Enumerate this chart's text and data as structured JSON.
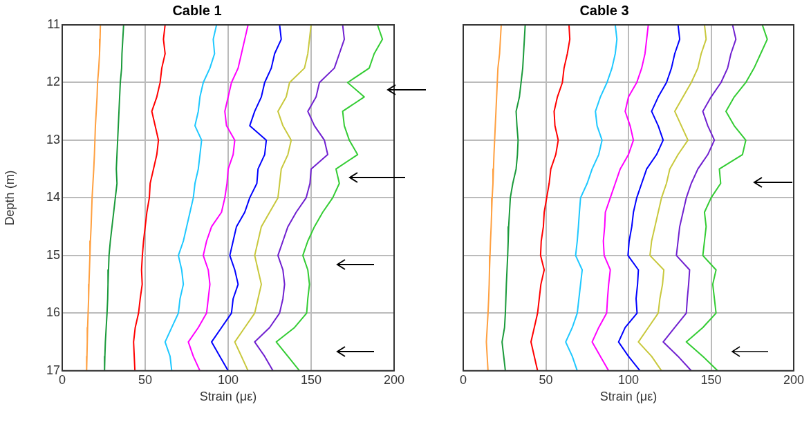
{
  "chart_data": [
    {
      "type": "line",
      "title": "Cable 1",
      "xlabel": "Strain (με)",
      "ylabel": "Depth (m)",
      "xlim": [
        0,
        200
      ],
      "xticks": [
        0,
        50,
        100,
        150,
        200
      ],
      "ylim": [
        17,
        11
      ],
      "yticks": [
        11,
        12,
        13,
        14,
        15,
        16,
        17
      ],
      "grid": true,
      "legend": false,
      "marker": "none",
      "line_style": "solid",
      "series": [
        {
          "color": "#ffa040",
          "x": [
            23,
            22.8,
            22.5,
            22,
            21.3,
            21,
            20.5,
            20,
            19.7,
            19.4,
            19,
            18.5,
            18,
            17.7,
            17.4,
            17,
            16.7,
            16.4,
            16.1,
            15.9,
            15.6,
            15.3,
            15.1,
            14.9,
            14.7
          ],
          "values": [
            11,
            11.25,
            11.5,
            11.75,
            12,
            12.25,
            12.5,
            12.75,
            13,
            13.25,
            13.5,
            13.75,
            14,
            14.25,
            14.5,
            14.75,
            15,
            15.25,
            15.5,
            15.75,
            16,
            16.25,
            16.5,
            16.75,
            17
          ]
        },
        {
          "color": "#1a9a3a",
          "x": [
            37,
            36.5,
            36,
            35.8,
            35,
            34.6,
            34.2,
            33.8,
            33.4,
            33,
            32.6,
            33,
            32,
            31,
            30,
            29,
            28.2,
            27.9,
            27.6,
            27.4,
            27,
            26.5,
            26,
            25.7,
            25.5
          ],
          "values": [
            11,
            11.25,
            11.5,
            11.75,
            12,
            12.25,
            12.5,
            12.75,
            13,
            13.25,
            13.5,
            13.75,
            14,
            14.25,
            14.5,
            14.75,
            15,
            15.25,
            15.5,
            15.75,
            16,
            16.25,
            16.5,
            16.75,
            17
          ]
        },
        {
          "color": "#ff0000",
          "x": [
            62,
            61,
            62,
            60,
            59,
            57,
            54,
            56,
            58,
            57,
            55,
            53,
            52.5,
            51,
            50,
            49,
            48.3,
            47.8,
            48.2,
            47,
            46,
            44,
            43,
            43.4,
            43.8
          ],
          "values": [
            11,
            11.25,
            11.5,
            11.75,
            12,
            12.25,
            12.5,
            12.75,
            13,
            13.25,
            13.5,
            13.75,
            14,
            14.25,
            14.5,
            14.75,
            15,
            15.25,
            15.5,
            15.75,
            16,
            16.25,
            16.5,
            16.75,
            17
          ]
        },
        {
          "color": "#1ec8ff",
          "x": [
            93,
            91,
            91.8,
            89,
            85,
            83,
            82,
            80,
            84,
            83,
            82,
            80,
            79,
            77,
            75,
            73,
            70,
            72,
            73,
            71,
            70,
            66,
            62,
            65,
            66
          ],
          "values": [
            11,
            11.25,
            11.5,
            11.75,
            12,
            12.25,
            12.5,
            12.75,
            13,
            13.25,
            13.5,
            13.75,
            14,
            14.25,
            14.5,
            14.75,
            15,
            15.25,
            15.5,
            15.75,
            16,
            16.25,
            16.5,
            16.75,
            17
          ]
        },
        {
          "color": "#ff00ff",
          "x": [
            112,
            110,
            108,
            106,
            102,
            100,
            98,
            99,
            104,
            103,
            100,
            99.3,
            98,
            96,
            90,
            87,
            85,
            88,
            89,
            88,
            87,
            82,
            76,
            79,
            83
          ],
          "values": [
            11,
            11.25,
            11.5,
            11.75,
            12,
            12.25,
            12.5,
            12.75,
            13,
            13.25,
            13.5,
            13.75,
            14,
            14.25,
            14.5,
            14.75,
            15,
            15.25,
            15.5,
            15.75,
            16,
            16.25,
            16.5,
            16.75,
            17
          ]
        },
        {
          "color": "#0000ff",
          "x": [
            131,
            132,
            128,
            126,
            122,
            120,
            116,
            113,
            123,
            122,
            118,
            117.3,
            113,
            110,
            105,
            103,
            101,
            104,
            106,
            103,
            102,
            96,
            90,
            95,
            100
          ],
          "values": [
            11,
            11.25,
            11.5,
            11.75,
            12,
            12.25,
            12.5,
            12.75,
            13,
            13.25,
            13.5,
            13.75,
            14,
            14.25,
            14.5,
            14.75,
            15,
            15.25,
            15.5,
            15.75,
            16,
            16.25,
            16.5,
            16.75,
            17
          ]
        },
        {
          "color": "#c8c83c",
          "x": [
            150,
            149,
            148,
            146,
            137,
            135,
            130,
            133,
            138,
            136,
            132,
            131,
            130,
            125,
            120,
            118,
            116,
            118,
            120,
            118,
            116,
            110,
            104,
            108,
            112
          ],
          "values": [
            11,
            11.25,
            11.5,
            11.75,
            12,
            12.25,
            12.5,
            12.75,
            13,
            13.25,
            13.5,
            13.75,
            14,
            14.25,
            14.5,
            14.75,
            15,
            15.25,
            15.5,
            15.75,
            16,
            16.25,
            16.5,
            16.75,
            17
          ]
        },
        {
          "color": "#7020d0",
          "x": [
            169,
            170,
            167,
            164,
            155,
            153,
            148,
            152,
            158,
            160,
            150,
            149.3,
            147,
            141,
            136,
            133,
            130,
            133,
            134,
            133,
            131,
            125,
            116,
            122,
            127
          ],
          "values": [
            11,
            11.25,
            11.5,
            11.75,
            12,
            12.25,
            12.5,
            12.75,
            13,
            13.25,
            13.5,
            13.75,
            14,
            14.25,
            14.5,
            14.75,
            15,
            15.25,
            15.5,
            15.75,
            16,
            16.25,
            16.5,
            16.75,
            17
          ]
        },
        {
          "color": "#33cc33",
          "x": [
            190,
            193,
            188,
            185,
            172,
            182,
            169,
            170,
            173,
            178,
            165,
            167,
            163,
            157,
            152,
            148,
            145,
            148,
            149,
            148,
            147.3,
            140,
            129,
            136,
            143
          ],
          "values": [
            11,
            11.25,
            11.5,
            11.75,
            12,
            12.25,
            12.5,
            12.75,
            13,
            13.25,
            13.5,
            13.75,
            14,
            14.25,
            14.5,
            14.75,
            15,
            15.25,
            15.5,
            15.75,
            16,
            16.25,
            16.5,
            16.75,
            17
          ]
        }
      ]
    },
    {
      "type": "line",
      "title": "Cable 3",
      "xlabel": "Strain (με)",
      "xlim": [
        0,
        200
      ],
      "xticks": [
        0,
        50,
        100,
        150,
        200
      ],
      "ylim": [
        17,
        11
      ],
      "yticks": [
        11,
        12,
        13,
        14,
        15,
        16,
        17
      ],
      "grid": true,
      "legend": false,
      "marker": "none",
      "line_style": "solid",
      "tick_labels": "x",
      "series": [
        {
          "color": "#ffa040",
          "x": [
            23,
            22.5,
            22,
            21,
            20.6,
            20.2,
            19.8,
            19.4,
            19,
            18.6,
            18.3,
            18,
            17.5,
            17.2,
            16.9,
            16.5,
            16.2,
            15.9,
            15.7,
            15.4,
            15,
            14.5,
            14,
            14.5,
            15
          ],
          "values": [
            11,
            11.25,
            11.5,
            11.75,
            12,
            12.25,
            12.5,
            12.75,
            13,
            13.25,
            13.5,
            13.75,
            14,
            14.25,
            14.5,
            14.75,
            15,
            15.25,
            15.5,
            15.75,
            16,
            16.25,
            16.5,
            16.75,
            17
          ]
        },
        {
          "color": "#1a9a3a",
          "x": [
            37.5,
            37,
            36.5,
            36,
            35,
            34,
            32,
            32.5,
            33.2,
            32.8,
            32,
            30,
            28.5,
            28,
            27.5,
            27.2,
            26.9,
            26.5,
            26.1,
            25.8,
            25.5,
            25,
            23.5,
            24.5,
            25.5
          ],
          "values": [
            11,
            11.25,
            11.5,
            11.75,
            12,
            12.25,
            12.5,
            12.75,
            13,
            13.25,
            13.5,
            13.75,
            14,
            14.25,
            14.5,
            14.75,
            15,
            15.25,
            15.5,
            15.75,
            16,
            16.25,
            16.5,
            16.75,
            17
          ]
        },
        {
          "color": "#ff0000",
          "x": [
            64,
            64.5,
            63,
            61,
            60,
            57,
            55,
            55.5,
            57.5,
            56,
            53,
            52,
            50.5,
            49,
            48.5,
            47.2,
            46.8,
            49,
            47,
            46,
            45,
            43,
            41,
            43,
            45
          ],
          "values": [
            11,
            11.25,
            11.5,
            11.75,
            12,
            12.25,
            12.5,
            12.75,
            13,
            13.25,
            13.5,
            13.75,
            14,
            14.25,
            14.5,
            14.75,
            15,
            15.25,
            15.5,
            15.75,
            16,
            16.25,
            16.5,
            16.75,
            17
          ]
        },
        {
          "color": "#1ec8ff",
          "x": [
            92,
            93,
            92,
            90,
            87,
            83,
            80,
            81,
            84,
            82,
            78,
            75,
            71,
            70.3,
            69.7,
            69,
            68,
            72,
            71,
            70,
            69,
            66,
            62,
            66,
            69
          ],
          "values": [
            11,
            11.25,
            11.5,
            11.75,
            12,
            12.25,
            12.5,
            12.75,
            13,
            13.25,
            13.5,
            13.75,
            14,
            14.25,
            14.5,
            14.75,
            15,
            15.25,
            15.5,
            15.75,
            16,
            16.25,
            16.5,
            16.75,
            17
          ]
        },
        {
          "color": "#ff00ff",
          "x": [
            112,
            111,
            110,
            108,
            105,
            100,
            98,
            101,
            103,
            100,
            95,
            92,
            89,
            86,
            85.6,
            84.8,
            85.3,
            89,
            88,
            87.3,
            86.8,
            82,
            78,
            83,
            88
          ],
          "values": [
            11,
            11.25,
            11.5,
            11.75,
            12,
            12.25,
            12.5,
            12.75,
            13,
            13.25,
            13.5,
            13.75,
            14,
            14.25,
            14.5,
            14.75,
            15,
            15.25,
            15.5,
            15.75,
            16,
            16.25,
            16.5,
            16.75,
            17
          ]
        },
        {
          "color": "#0000ff",
          "x": [
            130,
            131,
            128,
            126,
            123,
            118,
            114,
            118,
            121,
            117,
            111,
            108,
            105,
            103,
            102,
            100.4,
            99.7,
            106,
            105.5,
            104.6,
            105.2,
            98,
            94,
            100,
            107
          ],
          "values": [
            11,
            11.25,
            11.5,
            11.75,
            12,
            12.25,
            12.5,
            12.75,
            13,
            13.25,
            13.5,
            13.75,
            14,
            14.25,
            14.5,
            14.75,
            15,
            15.25,
            15.5,
            15.75,
            16,
            16.25,
            16.5,
            16.75,
            17
          ]
        },
        {
          "color": "#c8c83c",
          "x": [
            146,
            147,
            144,
            142,
            138,
            133,
            128,
            132,
            136,
            130,
            125,
            123,
            120,
            118,
            116,
            114,
            113,
            121.4,
            120.6,
            119,
            118,
            112,
            106,
            114,
            120
          ],
          "values": [
            11,
            11.25,
            11.5,
            11.75,
            12,
            12.25,
            12.5,
            12.75,
            13,
            13.25,
            13.5,
            13.75,
            14,
            14.25,
            14.5,
            14.75,
            15,
            15.25,
            15.5,
            15.75,
            16,
            16.25,
            16.5,
            16.75,
            17
          ]
        },
        {
          "color": "#7020d0",
          "x": [
            163,
            165,
            162,
            160,
            156,
            150,
            145,
            148,
            152,
            148,
            142,
            138,
            135,
            133,
            131,
            130,
            129,
            137,
            136.4,
            135.6,
            135,
            128,
            121,
            130,
            138
          ],
          "values": [
            11,
            11.25,
            11.5,
            11.75,
            12,
            12.25,
            12.5,
            12.75,
            13,
            13.25,
            13.5,
            13.75,
            14,
            14.25,
            14.5,
            14.75,
            15,
            15.25,
            15.5,
            15.75,
            16,
            16.25,
            16.5,
            16.75,
            17
          ]
        },
        {
          "color": "#33cc33",
          "x": [
            181,
            184,
            180,
            176,
            171,
            164,
            159,
            164,
            171,
            169,
            155,
            155.8,
            150,
            146,
            147,
            146,
            145,
            153,
            151,
            152,
            153,
            145,
            135,
            145,
            154
          ],
          "values": [
            11,
            11.25,
            11.5,
            11.75,
            12,
            12.25,
            12.5,
            12.75,
            13,
            13.25,
            13.5,
            13.75,
            14,
            14.25,
            14.5,
            14.75,
            15,
            15.25,
            15.5,
            15.75,
            16,
            16.25,
            16.5,
            16.75,
            17
          ]
        }
      ]
    }
  ]
}
